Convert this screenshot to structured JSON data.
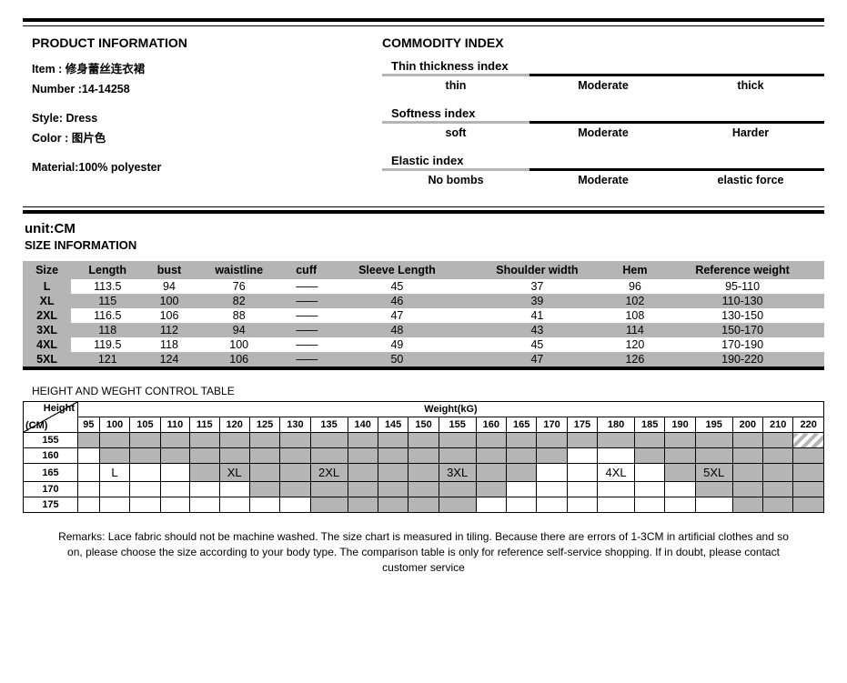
{
  "productInfo": {
    "title": "PRODUCT INFORMATION",
    "item_label": "Item : 修身蕾丝连衣裙",
    "number_label": "Number :14-14258",
    "style_label": "Style: Dress",
    "color_label": "Color : 图片色",
    "material_label": "Material:100% polyester"
  },
  "commodityIndex": {
    "title": "COMMODITY INDEX",
    "indices": [
      {
        "name": "Thin thickness index",
        "labels": [
          "thin",
          "Moderate",
          "thick"
        ],
        "segs": [
          "gray",
          "black",
          "black"
        ]
      },
      {
        "name": "Softness index",
        "labels": [
          "soft",
          "Moderate",
          "Harder"
        ],
        "segs": [
          "gray",
          "black",
          "black"
        ]
      },
      {
        "name": "Elastic index",
        "labels": [
          "No bombs",
          "Moderate",
          "elastic force"
        ],
        "segs": [
          "gray",
          "black",
          "black"
        ]
      }
    ]
  },
  "unit": "unit:CM",
  "sizeInfoTitle": "SIZE INFORMATION",
  "sizeTable": {
    "headers": [
      "Size",
      "Length",
      "bust",
      "waistline",
      "cuff",
      "Sleeve Length",
      "Shoulder width",
      "Hem",
      "Reference weight"
    ],
    "rows": [
      [
        "L",
        "113.5",
        "94",
        "76",
        "——",
        "45",
        "37",
        "96",
        "95-110"
      ],
      [
        "XL",
        "115",
        "100",
        "82",
        "——",
        "46",
        "39",
        "102",
        "110-130"
      ],
      [
        "2XL",
        "116.5",
        "106",
        "88",
        "——",
        "47",
        "41",
        "108",
        "130-150"
      ],
      [
        "3XL",
        "118",
        "112",
        "94",
        "——",
        "48",
        "43",
        "114",
        "150-170"
      ],
      [
        "4XL",
        "119.5",
        "118",
        "100",
        "——",
        "49",
        "45",
        "120",
        "170-190"
      ],
      [
        "5XL",
        "121",
        "124",
        "106",
        "——",
        "50",
        "47",
        "126",
        "190-220"
      ]
    ],
    "altRows": [
      1,
      3,
      5
    ],
    "headerBg": "#b5b5b5",
    "altBg": "#b5b5b5",
    "sizeColBg": "#b5b5b5"
  },
  "hwTitle": "HEIGHT AND WEGHT CONTROL TABLE",
  "hw": {
    "cornerTop": "Height",
    "cornerBottom": "(CM)",
    "weightHeader": "Weight(kG)",
    "weights": [
      "95",
      "100",
      "105",
      "110",
      "115",
      "120",
      "125",
      "130",
      "135",
      "140",
      "145",
      "150",
      "155",
      "160",
      "165",
      "170",
      "175",
      "180",
      "185",
      "190",
      "195",
      "200",
      "210",
      "220"
    ],
    "heights": [
      "155",
      "160",
      "165",
      "170",
      "175"
    ],
    "zoneLabels": {
      "L": "L",
      "XL": "XL",
      "2XL": "2XL",
      "3XL": "3XL",
      "4XL": "4XL",
      "5XL": "5XL"
    }
  },
  "remarks": "Remarks: Lace fabric should not be machine washed. The size chart is measured in tiling. Because there are errors of 1-3CM in artificial clothes and so on, please choose the size according to your body type. The comparison table is only for reference self-service shopping. If in doubt, please contact customer service",
  "colors": {
    "gray": "#b5b5b5",
    "black": "#000000",
    "bg": "#ffffff"
  }
}
